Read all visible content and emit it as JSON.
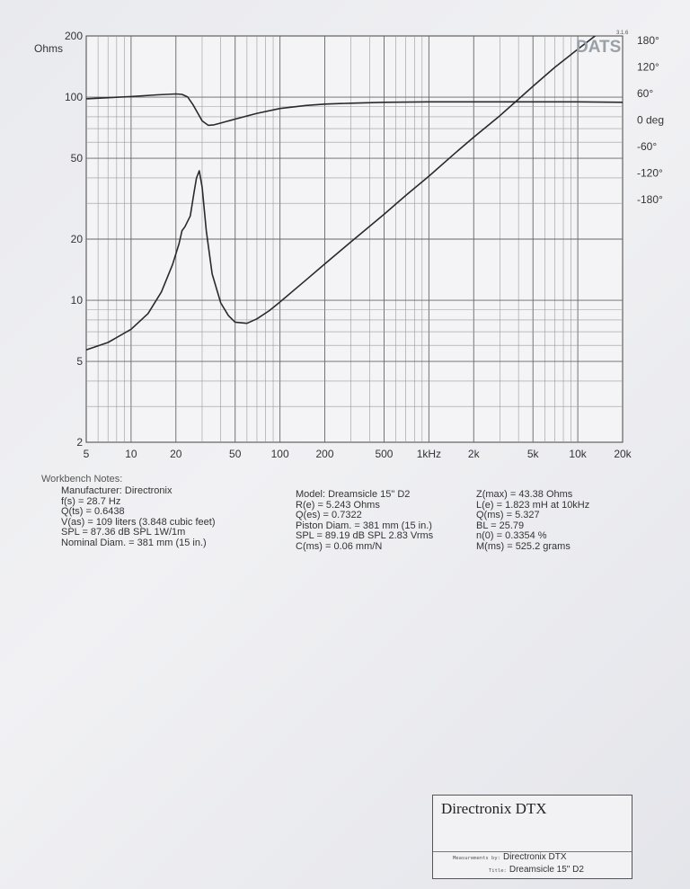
{
  "chart_data": {
    "type": "line",
    "brand": "DATS",
    "version": "3.1.6",
    "y_unit": "Ohms",
    "x_scale": "log",
    "y_scale": "log",
    "grid": true,
    "xlim": [
      5,
      20000
    ],
    "ylim": [
      2,
      200
    ],
    "phase_lim": [
      -180,
      180
    ],
    "x_ticks": [
      {
        "v": 5,
        "label": "5"
      },
      {
        "v": 10,
        "label": "10"
      },
      {
        "v": 20,
        "label": "20"
      },
      {
        "v": 50,
        "label": "50"
      },
      {
        "v": 100,
        "label": "100"
      },
      {
        "v": 200,
        "label": "200"
      },
      {
        "v": 500,
        "label": "500"
      },
      {
        "v": 1000,
        "label": "1kHz"
      },
      {
        "v": 2000,
        "label": "2k"
      },
      {
        "v": 5000,
        "label": "5k"
      },
      {
        "v": 10000,
        "label": "10k"
      },
      {
        "v": 20000,
        "label": "20k"
      }
    ],
    "y_ticks": [
      {
        "v": 200,
        "label": "200"
      },
      {
        "v": 100,
        "label": "100"
      },
      {
        "v": 50,
        "label": "50"
      },
      {
        "v": 20,
        "label": "20"
      },
      {
        "v": 10,
        "label": "10"
      },
      {
        "v": 5,
        "label": "5"
      },
      {
        "v": 2,
        "label": "2"
      }
    ],
    "phase_ticks": [
      {
        "v": 180,
        "label": "180°"
      },
      {
        "v": 120,
        "label": "120°"
      },
      {
        "v": 60,
        "label": "60°"
      },
      {
        "v": 0,
        "label": "0 deg"
      },
      {
        "v": -60,
        "label": "-60°"
      },
      {
        "v": -120,
        "label": "-120°"
      },
      {
        "v": -180,
        "label": "-180°"
      }
    ],
    "series": [
      {
        "axis": "impedance",
        "x": [
          5,
          7,
          10,
          13,
          16,
          19,
          21,
          22,
          23,
          25,
          26.5,
          27.5,
          28.7,
          30,
          32,
          35,
          40,
          45,
          50,
          60,
          70,
          85,
          100,
          150,
          200,
          300,
          500,
          700,
          1000,
          1500,
          2000,
          3000,
          5000,
          7000,
          10000,
          14000
        ],
        "y": [
          5.7,
          6.2,
          7.2,
          8.6,
          11,
          15,
          19,
          22,
          23,
          26,
          34,
          40,
          43.38,
          36,
          22,
          13.5,
          9.7,
          8.4,
          7.8,
          7.7,
          8.1,
          8.9,
          9.8,
          12.6,
          15.1,
          19.4,
          26.5,
          32.8,
          40.8,
          53,
          63.5,
          81,
          113,
          140,
          172,
          208
        ]
      },
      {
        "axis": "phase",
        "x": [
          5,
          10,
          15,
          20,
          22,
          24,
          26,
          28,
          30,
          33,
          36,
          40,
          50,
          70,
          100,
          150,
          200,
          300,
          500,
          1000,
          2000,
          5000,
          10000,
          20000
        ],
        "y": [
          48,
          53,
          57,
          59,
          58,
          52,
          35,
          16,
          -2,
          -12,
          -11,
          -7,
          2,
          15,
          26,
          33,
          36,
          38,
          40,
          41,
          41,
          41,
          41,
          40
        ]
      }
    ]
  },
  "notes": {
    "heading": "Workbench Notes:",
    "left": [
      "Manufacturer: Directronix",
      "f(s) = 28.7 Hz",
      "Q(ts) = 0.6438",
      "V(as) = 109 liters  (3.848 cubic feet)",
      "SPL = 87.36 dB SPL 1W/1m",
      "Nominal Diam. = 381 mm (15 in.)"
    ],
    "middle": [
      "Model: Dreamsicle 15\" D2",
      "R(e) = 5.243 Ohms",
      "Q(es) = 0.7322",
      "Piston Diam. = 381 mm (15 in.)",
      "SPL = 89.19 dB SPL 2.83 Vrms",
      "C(ms) = 0.06 mm/N"
    ],
    "right": [
      "Z(max) = 43.38 Ohms",
      "L(e) = 1.823 mH at 10kHz",
      "Q(ms) = 5.327",
      "BL = 25.79",
      "n(0) = 0.3354 %",
      "M(ms) = 525.2 grams"
    ]
  },
  "title_block": {
    "brand": "Directronix DTX",
    "measurements_label": "Measurements by:",
    "measurements_value": "Directronix DTX",
    "title_label": "Title:",
    "title_value": "Dreamsicle 15\" D2"
  }
}
